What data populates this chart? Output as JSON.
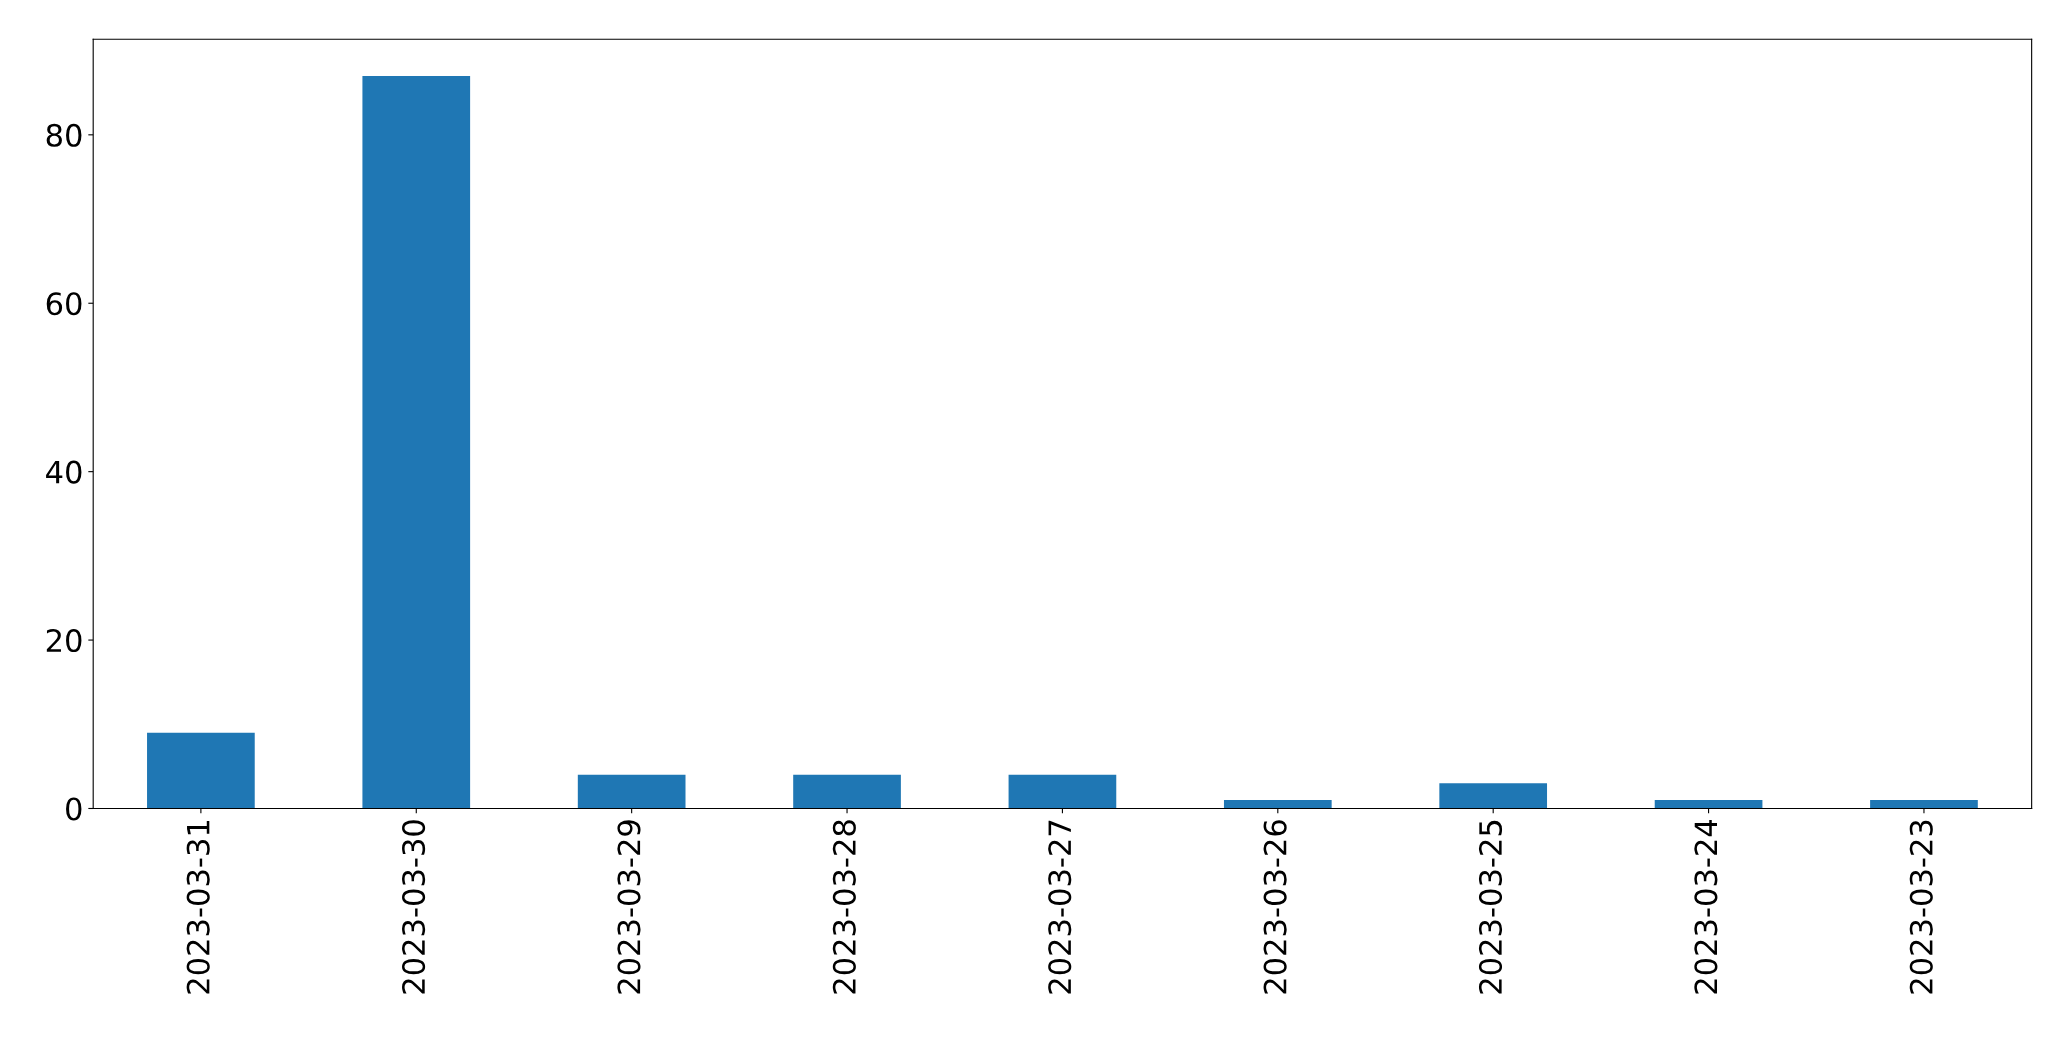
{
  "chart_data": {
    "type": "bar",
    "categories": [
      "2023-03-31",
      "2023-03-30",
      "2023-03-29",
      "2023-03-28",
      "2023-03-27",
      "2023-03-26",
      "2023-03-25",
      "2023-03-24",
      "2023-03-23"
    ],
    "values": [
      9,
      87,
      4,
      4,
      4,
      1,
      3,
      1,
      1
    ],
    "color": "#1f77b4",
    "ylim": [
      0,
      91.35
    ],
    "yticks": [
      0,
      20,
      40,
      60,
      80
    ],
    "grid": false
  }
}
